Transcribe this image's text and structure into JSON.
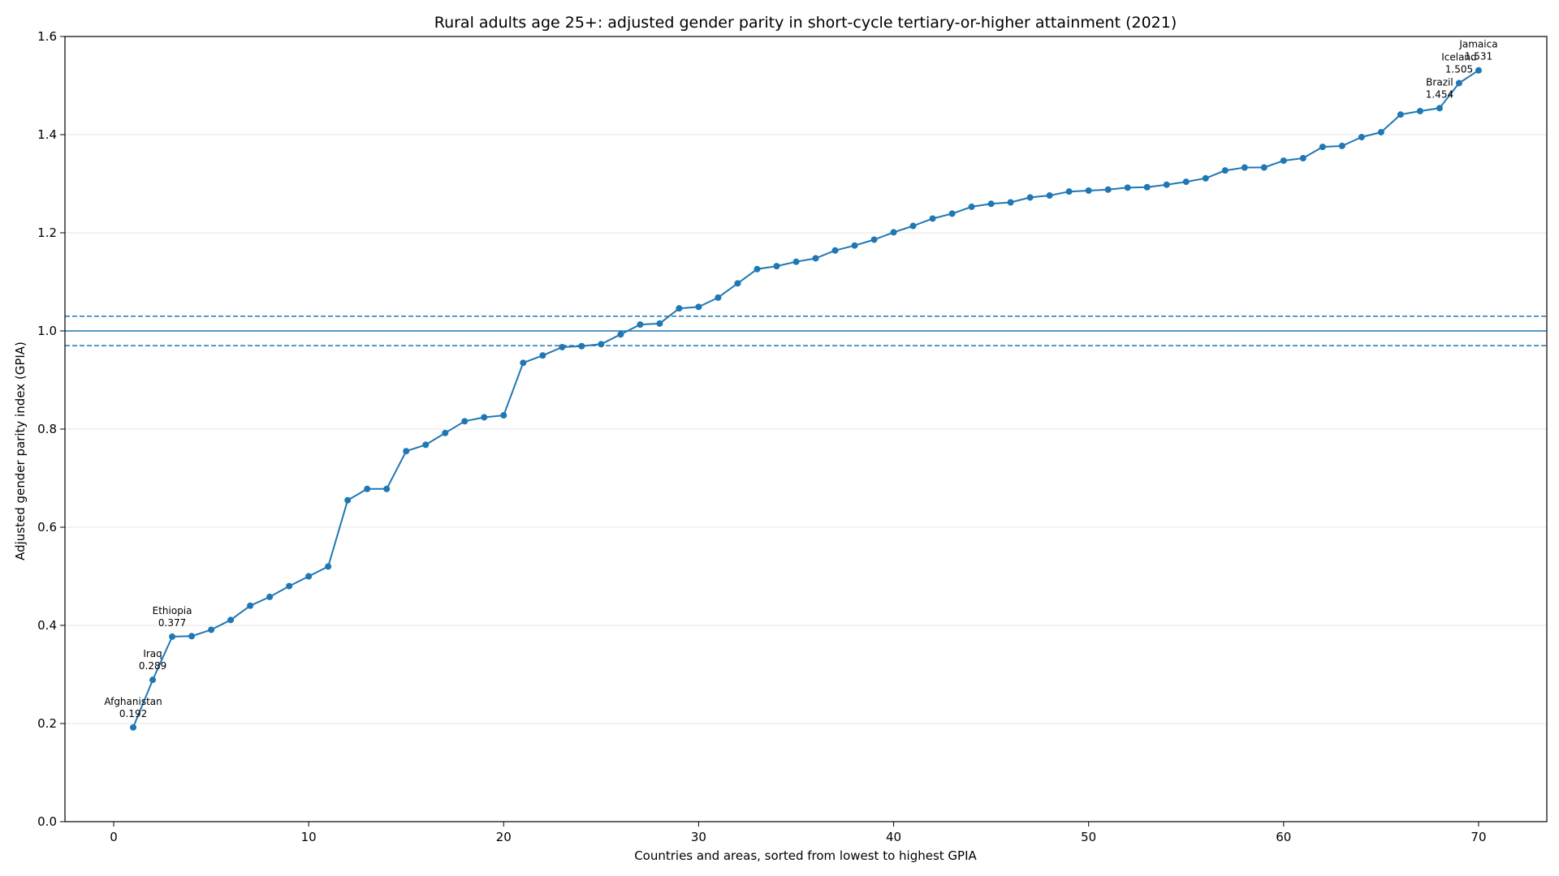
{
  "chart_data": {
    "type": "line",
    "title": "Rural adults age 25+: adjusted gender parity in short-cycle tertiary-or-higher attainment (2021)",
    "xlabel": "Countries and areas, sorted from lowest to highest GPIA",
    "ylabel": "Adjusted gender parity index (GPIA)",
    "xlim": [
      -2.5,
      73.5
    ],
    "ylim": [
      0.0,
      1.6
    ],
    "xticks": [
      0,
      10,
      20,
      30,
      40,
      50,
      60,
      70
    ],
    "yticks": [
      0.0,
      0.2,
      0.4,
      0.6,
      0.8,
      1.0,
      1.2,
      1.4,
      1.6
    ],
    "grid": "horizontal",
    "color": "#1f77b4",
    "reference_lines": [
      {
        "y": 1.0,
        "style": "solid"
      },
      {
        "y": 0.97,
        "style": "dashed"
      },
      {
        "y": 1.03,
        "style": "dashed"
      }
    ],
    "x": [
      1,
      2,
      3,
      4,
      5,
      6,
      7,
      8,
      9,
      10,
      11,
      12,
      13,
      14,
      15,
      16,
      17,
      18,
      19,
      20,
      21,
      22,
      23,
      24,
      25,
      26,
      27,
      28,
      29,
      30,
      31,
      32,
      33,
      34,
      35,
      36,
      37,
      38,
      39,
      40,
      41,
      42,
      43,
      44,
      45,
      46,
      47,
      48,
      49,
      50,
      51,
      52,
      53,
      54,
      55,
      56,
      57,
      58,
      59,
      60,
      61,
      62,
      63,
      64,
      65,
      66,
      67,
      68,
      69,
      70
    ],
    "values": [
      0.192,
      0.289,
      0.377,
      0.378,
      0.391,
      0.411,
      0.44,
      0.458,
      0.48,
      0.5,
      0.52,
      0.655,
      0.678,
      0.678,
      0.755,
      0.768,
      0.792,
      0.816,
      0.824,
      0.828,
      0.935,
      0.95,
      0.967,
      0.969,
      0.973,
      0.993,
      1.013,
      1.015,
      1.046,
      1.049,
      1.068,
      1.097,
      1.126,
      1.132,
      1.141,
      1.148,
      1.164,
      1.174,
      1.186,
      1.201,
      1.214,
      1.229,
      1.239,
      1.253,
      1.259,
      1.262,
      1.272,
      1.276,
      1.284,
      1.286,
      1.288,
      1.292,
      1.293,
      1.298,
      1.304,
      1.311,
      1.327,
      1.333,
      1.333,
      1.347,
      1.352,
      1.375,
      1.377,
      1.395,
      1.405,
      1.441,
      1.448,
      1.454,
      1.505,
      1.531
    ],
    "annotations": [
      {
        "x": 1,
        "y": 0.192,
        "name": "Afghanistan",
        "value": "0.192"
      },
      {
        "x": 2,
        "y": 0.289,
        "name": "Iraq",
        "value": "0.289"
      },
      {
        "x": 3,
        "y": 0.377,
        "name": "Ethiopia",
        "value": "0.377"
      },
      {
        "x": 68,
        "y": 1.454,
        "name": "Brazil",
        "value": "1.454"
      },
      {
        "x": 69,
        "y": 1.505,
        "name": "Iceland",
        "value": "1.505"
      },
      {
        "x": 70,
        "y": 1.531,
        "name": "Jamaica",
        "value": "1.531"
      }
    ]
  }
}
